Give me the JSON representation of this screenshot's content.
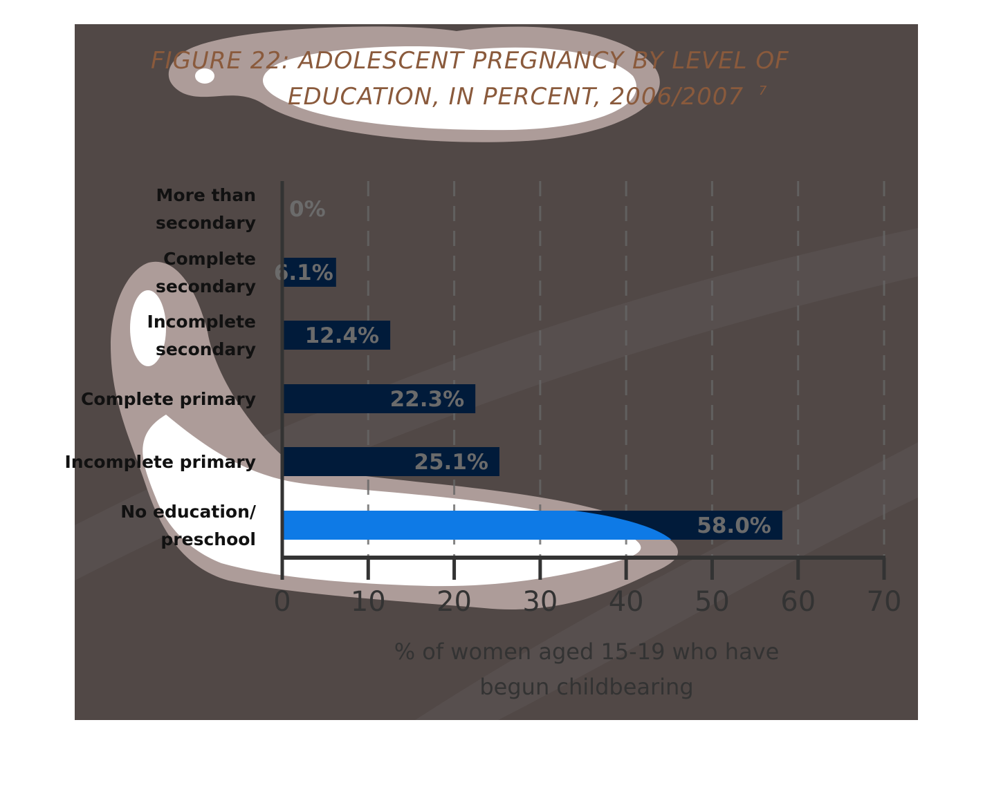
{
  "colors": {
    "panel": "#514846",
    "bar": "#011b3a",
    "bar_highlight": "#0e7ae6",
    "blob_ring": "#ad9c99",
    "blob_fill": "#ffffff",
    "title": "#8a5a3c",
    "axis": "#333333",
    "grid": "#666666"
  },
  "chart_data": {
    "type": "bar",
    "orientation": "horizontal",
    "title_line1": "FIGURE 22: ADOLESCENT PREGNANCY BY LEVEL OF",
    "title_line2": "EDUCATION, IN PERCENT, 2006/2007",
    "title_superscript": "7",
    "categories": [
      [
        "More than",
        "secondary"
      ],
      [
        "Complete",
        "secondary"
      ],
      [
        "Incomplete",
        "secondary"
      ],
      [
        "Complete primary"
      ],
      [
        "Incomplete primary"
      ],
      [
        "No education/",
        "preschool"
      ]
    ],
    "values": [
      0,
      6.1,
      12.4,
      22.3,
      25.1,
      58.0
    ],
    "value_labels": [
      "0%",
      "6.1%",
      "12.4%",
      "22.3%",
      "25.1%",
      "58.0%"
    ],
    "xlabel_line1": "% of women aged 15-19 who have",
    "xlabel_line2": "begun childbearing",
    "ylabel": "",
    "xlim": [
      0,
      70
    ],
    "xticks": [
      0,
      10,
      20,
      30,
      40,
      50,
      60,
      70
    ],
    "grid": "vertical dashed"
  }
}
